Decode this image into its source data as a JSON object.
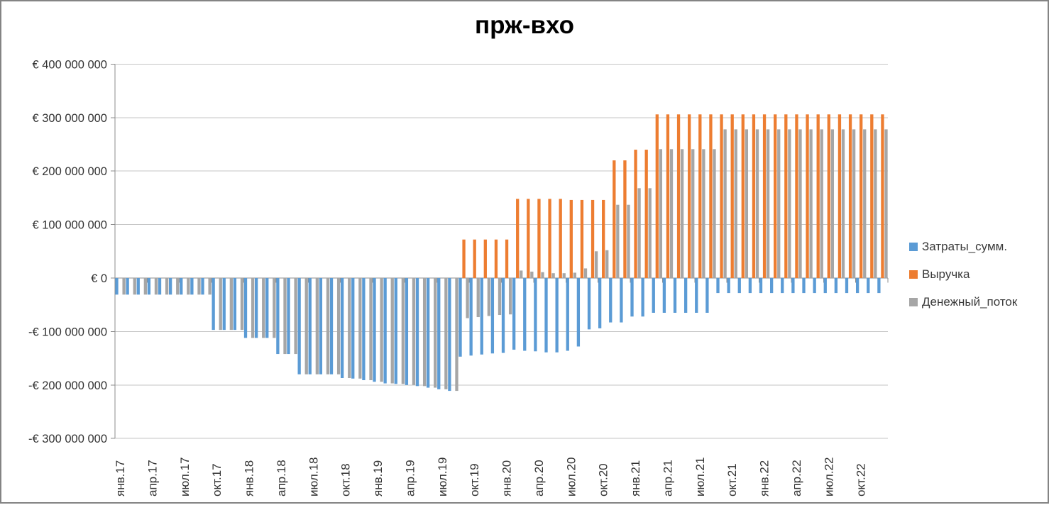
{
  "chart_data": {
    "type": "bar",
    "title": "прж-вхо",
    "unit": "EUR millions",
    "n_months": 72,
    "x_tick_every_months": 3,
    "x_tick_labels": [
      "янв.17",
      "апр.17",
      "июл.17",
      "окт.17",
      "янв.18",
      "апр.18",
      "июл.18",
      "окт.18",
      "янв.19",
      "апр.19",
      "июл.19",
      "окт.19",
      "янв.20",
      "апр.20",
      "июл.20",
      "окт.20",
      "янв.21",
      "апр.21",
      "июл.21",
      "окт.21",
      "янв.22",
      "апр.22",
      "июл.22",
      "окт.22"
    ],
    "y_ticks": {
      "values": [
        400,
        300,
        200,
        100,
        0,
        -100,
        -200,
        -300
      ],
      "labels": [
        "€ 400 000 000",
        "€ 300 000 000",
        "€ 200 000 000",
        "€ 100 000 000",
        "€ 0",
        "-€ 100 000 000",
        "-€ 200 000 000",
        "-€ 300 000 000"
      ]
    },
    "ylim_millions": [
      -300,
      400
    ],
    "grid": true,
    "legend_position": "right",
    "series": [
      {
        "name": "Затраты_сумм.",
        "color": "#5B9BD5",
        "values": [
          -31,
          -31,
          -31,
          -31,
          -31,
          -31,
          -31,
          -31,
          -31,
          -97,
          -97,
          -97,
          -112,
          -112,
          -112,
          -142,
          -142,
          -180,
          -180,
          -180,
          -180,
          -187,
          -188,
          -191,
          -194,
          -197,
          -198,
          -200,
          -202,
          -205,
          -208,
          -211,
          -147,
          -145,
          -143,
          -141,
          -140,
          -134,
          -136,
          -137,
          -139,
          -139,
          -136,
          -128,
          -96,
          -94,
          -83,
          -83,
          -72,
          -72,
          -65,
          -65,
          -65,
          -65,
          -65,
          -65,
          -28,
          -28,
          -28,
          -28,
          -28,
          -28,
          -28,
          -28,
          -28,
          -28,
          -28,
          -28,
          -28,
          -28,
          -28,
          -28
        ]
      },
      {
        "name": "Выручка",
        "color": "#ED7D31",
        "values": [
          0,
          0,
          0,
          0,
          0,
          0,
          0,
          0,
          0,
          0,
          0,
          0,
          0,
          0,
          0,
          0,
          0,
          0,
          0,
          0,
          0,
          0,
          0,
          0,
          0,
          0,
          0,
          0,
          0,
          0,
          0,
          0,
          72,
          72,
          72,
          72,
          72,
          148,
          148,
          148,
          148,
          148,
          146,
          146,
          146,
          146,
          220,
          220,
          240,
          240,
          306,
          306,
          306,
          306,
          306,
          306,
          306,
          306,
          306,
          306,
          306,
          306,
          306,
          306,
          306,
          306,
          306,
          306,
          306,
          306,
          306,
          306
        ]
      },
      {
        "name": "Денежный_поток",
        "color": "#A6A6A6",
        "values": [
          -31,
          -31,
          -31,
          -31,
          -31,
          -31,
          -31,
          -31,
          -31,
          -97,
          -97,
          -97,
          -112,
          -112,
          -112,
          -142,
          -142,
          -180,
          -180,
          -180,
          -180,
          -187,
          -188,
          -191,
          -194,
          -197,
          -198,
          -200,
          -202,
          -205,
          -208,
          -211,
          -75,
          -73,
          -71,
          -69,
          -68,
          14,
          12,
          11,
          9,
          9,
          10,
          18,
          50,
          52,
          137,
          137,
          168,
          168,
          241,
          241,
          241,
          241,
          241,
          241,
          278,
          278,
          278,
          278,
          278,
          278,
          278,
          278,
          278,
          278,
          278,
          278,
          278,
          278,
          278,
          278
        ]
      }
    ]
  }
}
